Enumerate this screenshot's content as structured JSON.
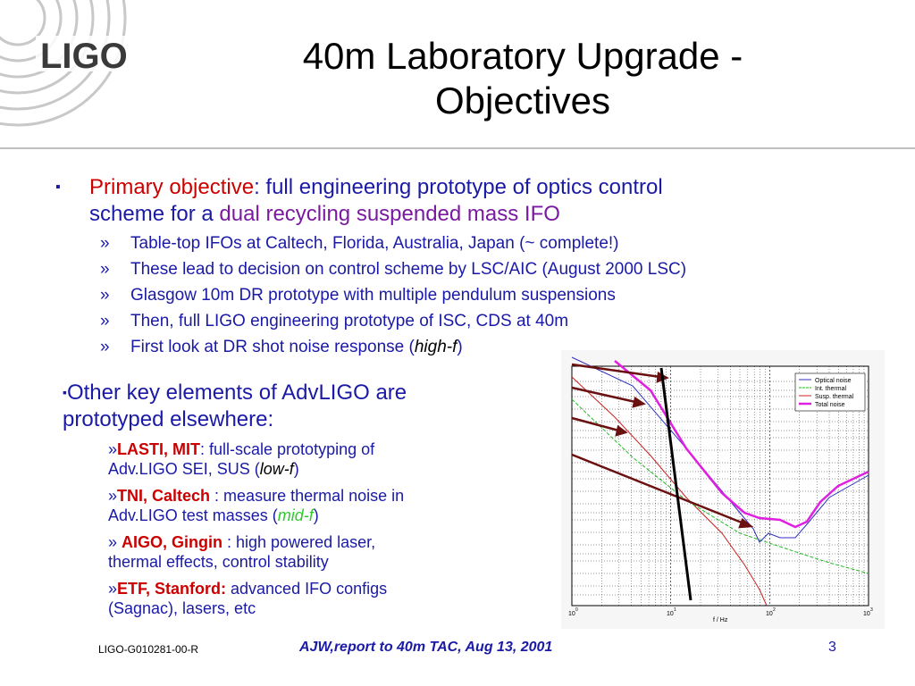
{
  "header": {
    "logo_text": "LIGO",
    "title_line1": "40m Laboratory Upgrade -",
    "title_line2": "Objectives"
  },
  "main": {
    "bullet1": {
      "marker": "▪",
      "lead": "Primary objective",
      "text_a": ": full engineering prototype of optics control",
      "text_b": "scheme for a ",
      "highlight": "dual recycling suspended mass IFO",
      "subs": [
        "Table-top IFOs at Caltech, Florida, Australia, Japan (~ complete!)",
        "These lead to decision on control scheme by LSC/AIC (August 2000 LSC)",
        "Glasgow 10m DR prototype with multiple pendulum suspensions",
        "Then, full LIGO engineering prototype of ISC, CDS at 40m"
      ],
      "last_sub": "First look at DR shot noise response (",
      "last_sub_ital": "high-f",
      "last_sub_end": ")"
    },
    "bullet2": {
      "marker": "▪",
      "line1": "Other key elements of AdvLIGO are",
      "line2": "prototyped elsewhere:",
      "items": [
        {
          "prefix": "»",
          "name": "LASTI, MIT",
          "rest_a": ":  full-scale prototyping of",
          "rest_b": "Adv.LIGO SEI, SUS (",
          "ital": "low-f",
          "end": ")"
        },
        {
          "prefix": "»",
          "name": "TNI, Caltech",
          "rest_a": " : measure thermal noise in",
          "rest_b": "Adv.LIGO test masses (",
          "ital": "mid-f",
          "end": ")"
        },
        {
          "prefix": "» ",
          "name": "AIGO, Gingin",
          "rest_a": " : high powered laser,",
          "rest_b": "thermal effects, control stability",
          "ital": "",
          "end": ""
        },
        {
          "prefix": "»",
          "name": "ETF, Stanford:",
          "rest_a": "  advanced IFO configs",
          "rest_b": "(Sagnac), lasers, etc",
          "ital": "",
          "end": ""
        }
      ]
    }
  },
  "figure": {
    "legend": [
      "Optical noise",
      "Int. thermal",
      "Susp. thermal",
      "Total noise"
    ],
    "xlabel": "f / Hz",
    "xticks": [
      "10",
      "10",
      "10",
      "10"
    ],
    "xexp": [
      "0",
      "1",
      "2",
      "3"
    ],
    "colors": {
      "optical": "#3030c0",
      "int": "#22bb22",
      "susp": "#cc2222",
      "total": "#e020e0",
      "arrow": "#6b1010"
    }
  },
  "footer": {
    "doc_id": "LIGO-G010281-00-R",
    "center": "AJW,report to 40m TAC, Aug 13, 2001",
    "page": "3"
  }
}
